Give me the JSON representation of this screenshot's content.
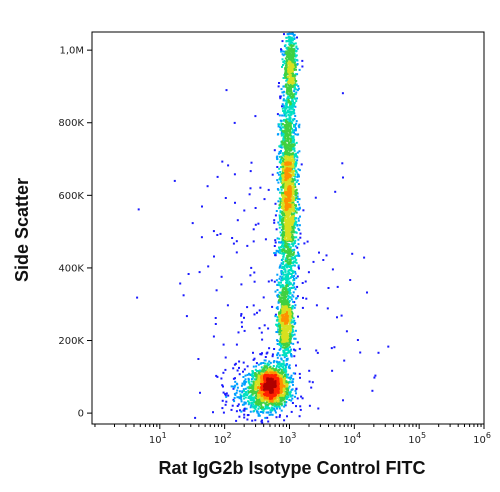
{
  "chart_data": {
    "type": "scatter",
    "xlabel": "Rat IgG2b Isotype Control FITC",
    "ylabel": "Side Scatter",
    "x_scale": "log",
    "xlim": [
      0.9,
      1000000
    ],
    "ylim": [
      -30000,
      1050000
    ],
    "x_ticks": [
      {
        "value": 10,
        "label": "10",
        "exp": "1"
      },
      {
        "value": 100,
        "label": "10",
        "exp": "2"
      },
      {
        "value": 1000,
        "label": "10",
        "exp": "3"
      },
      {
        "value": 10000,
        "label": "10",
        "exp": "4"
      },
      {
        "value": 100000,
        "label": "10",
        "exp": "5"
      },
      {
        "value": 1000000,
        "label": "10",
        "exp": "6"
      }
    ],
    "y_ticks": [
      {
        "value": 0,
        "label": "0"
      },
      {
        "value": 200000,
        "label": "200K"
      },
      {
        "value": 400000,
        "label": "400K"
      },
      {
        "value": 600000,
        "label": "600K"
      },
      {
        "value": 800000,
        "label": "800K"
      },
      {
        "value": 1000000,
        "label": "1,0M"
      }
    ],
    "density_colors": [
      "#1a1aff",
      "#00a0ff",
      "#00e0c0",
      "#40d040",
      "#d8e020",
      "#ff9000",
      "#ff2000",
      "#b00000"
    ],
    "populations": [
      {
        "x_log_center": 2.72,
        "x_log_sd": 0.14,
        "y_center": 75000,
        "y_sd": 28000,
        "weight": 0.24
      },
      {
        "x_log_center": 2.55,
        "x_log_sd": 0.22,
        "y_center": 55000,
        "y_sd": 35000,
        "weight": 0.1
      },
      {
        "x_log_center": 2.93,
        "x_log_sd": 0.06,
        "y_center": 250000,
        "y_sd": 55000,
        "weight": 0.13
      },
      {
        "x_log_center": 2.98,
        "x_log_sd": 0.07,
        "y_center": 600000,
        "y_sd": 140000,
        "weight": 0.38
      },
      {
        "x_log_center": 3.02,
        "x_log_sd": 0.05,
        "y_center": 950000,
        "y_sd": 60000,
        "weight": 0.1
      },
      {
        "x_log_center": 2.8,
        "x_log_sd": 0.7,
        "y_center": 250000,
        "y_sd": 260000,
        "weight": 0.05
      }
    ]
  }
}
